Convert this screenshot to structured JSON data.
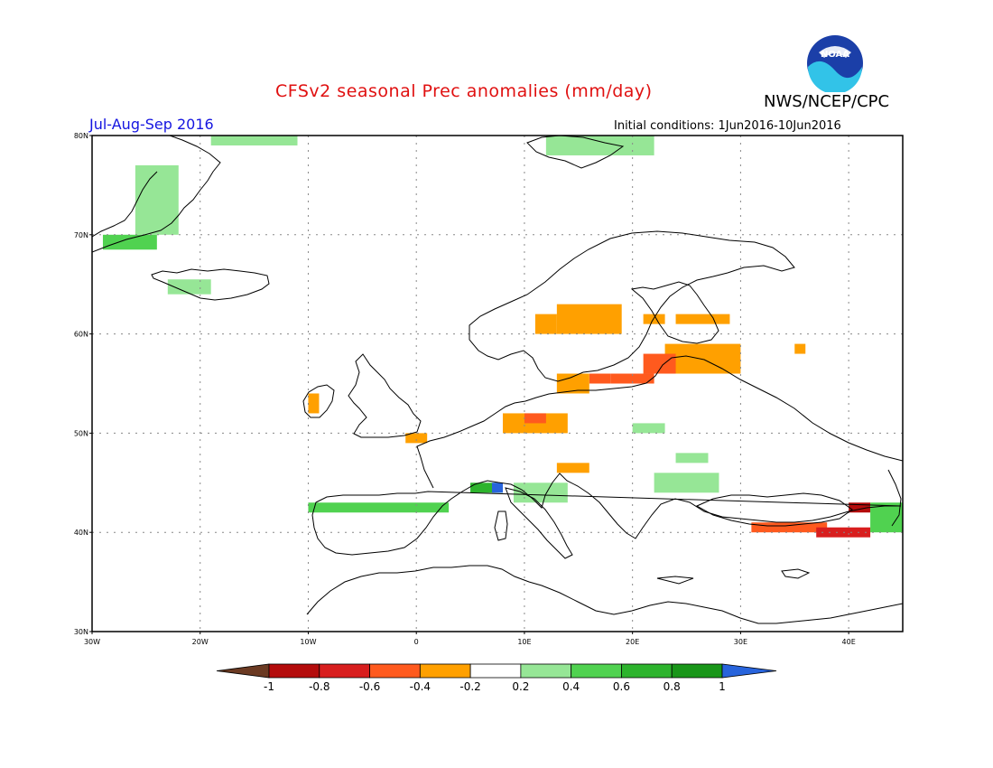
{
  "header": {
    "title": "CFSv2 seasonal Prec anomalies (mm/day)",
    "org": "NWS/NCEP/CPC",
    "logo_text": "NOAA",
    "season": "Jul-Aug-Sep 2016",
    "initial_conditions": "Initial conditions: 1Jun2016-10Jun2016"
  },
  "axes": {
    "lon_labels": [
      "30W",
      "20W",
      "10W",
      "0",
      "10E",
      "20E",
      "30E",
      "40E"
    ],
    "lat_labels": [
      "30N",
      "40N",
      "50N",
      "60N",
      "70N",
      "80N"
    ]
  },
  "colorbar": {
    "labels": [
      "-1",
      "-0.8",
      "-0.6",
      "-0.4",
      "-0.2",
      "0.2",
      "0.4",
      "0.6",
      "0.8",
      "1"
    ],
    "colors": [
      "#6b3a22",
      "#b40c0c",
      "#d81e1e",
      "#ff5a1e",
      "#ffa000",
      "#ffffff",
      "#96e696",
      "#50d250",
      "#2db42d",
      "#199619",
      "#2864dc"
    ]
  },
  "chart_data": {
    "type": "heatmap",
    "title": "CFSv2 seasonal Prec anomalies (mm/day)",
    "subtitle": "Jul-Aug-Sep 2016",
    "variable": "Prec anomalies (mm/day)",
    "lon_range": [
      -30,
      45
    ],
    "lat_range": [
      30,
      80
    ],
    "grid": "dotted",
    "colorbar_bins": [
      {
        "range": "< -1",
        "color": "#6b3a22"
      },
      {
        "range": "-1 to -0.8",
        "color": "#b40c0c"
      },
      {
        "range": "-0.8 to -0.6",
        "color": "#d81e1e"
      },
      {
        "range": "-0.6 to -0.4",
        "color": "#ff5a1e"
      },
      {
        "range": "-0.4 to -0.2",
        "color": "#ffa000"
      },
      {
        "range": "-0.2 to 0.2",
        "color": "#ffffff"
      },
      {
        "range": "0.2 to 0.4",
        "color": "#96e696"
      },
      {
        "range": "0.4 to 0.6",
        "color": "#50d250"
      },
      {
        "range": "0.6 to 0.8",
        "color": "#2db42d"
      },
      {
        "range": "0.8 to 1",
        "color": "#199619"
      },
      {
        "range": "> 1",
        "color": "#2864dc"
      }
    ],
    "regions": [
      {
        "lon": [
          -29,
          -24
        ],
        "lat": [
          68.5,
          70
        ],
        "value": 0.4
      },
      {
        "lon": [
          -26,
          -22
        ],
        "lat": [
          70,
          77
        ],
        "value": 0.3
      },
      {
        "lon": [
          -23,
          -19
        ],
        "lat": [
          64,
          65.5
        ],
        "value": 0.3
      },
      {
        "lon": [
          -19,
          -11
        ],
        "lat": [
          79,
          80
        ],
        "value": 0.3
      },
      {
        "lon": [
          12,
          22
        ],
        "lat": [
          78,
          80
        ],
        "value": 0.3
      },
      {
        "lon": [
          13,
          19
        ],
        "lat": [
          60,
          63
        ],
        "value": -0.3
      },
      {
        "lon": [
          11,
          13
        ],
        "lat": [
          60,
          62
        ],
        "value": -0.3
      },
      {
        "lon": [
          21,
          23
        ],
        "lat": [
          61,
          62
        ],
        "value": -0.3
      },
      {
        "lon": [
          24,
          29
        ],
        "lat": [
          61,
          62
        ],
        "value": -0.3
      },
      {
        "lon": [
          23,
          30
        ],
        "lat": [
          56,
          59
        ],
        "value": -0.3
      },
      {
        "lon": [
          21,
          24
        ],
        "lat": [
          56,
          58
        ],
        "value": -0.5
      },
      {
        "lon": [
          18,
          22
        ],
        "lat": [
          55,
          56
        ],
        "value": -0.5
      },
      {
        "lon": [
          16,
          18
        ],
        "lat": [
          55,
          56
        ],
        "value": -0.5
      },
      {
        "lon": [
          13,
          16
        ],
        "lat": [
          54,
          56
        ],
        "value": -0.3
      },
      {
        "lon": [
          8,
          14
        ],
        "lat": [
          50,
          52
        ],
        "value": -0.3
      },
      {
        "lon": [
          10,
          12
        ],
        "lat": [
          51,
          52
        ],
        "value": -0.5
      },
      {
        "lon": [
          -1,
          1
        ],
        "lat": [
          49,
          50
        ],
        "value": -0.3
      },
      {
        "lon": [
          -10,
          -9
        ],
        "lat": [
          52,
          54
        ],
        "value": -0.3
      },
      {
        "lon": [
          13,
          16
        ],
        "lat": [
          46,
          47
        ],
        "value": -0.3
      },
      {
        "lon": [
          5,
          8
        ],
        "lat": [
          44,
          45
        ],
        "value": 0.6
      },
      {
        "lon": [
          7,
          8
        ],
        "lat": [
          44,
          45
        ],
        "value": 1.1
      },
      {
        "lon": [
          -10,
          3
        ],
        "lat": [
          42,
          43
        ],
        "value": 0.4
      },
      {
        "lon": [
          9,
          14
        ],
        "lat": [
          43,
          45
        ],
        "value": 0.3
      },
      {
        "lon": [
          22,
          28
        ],
        "lat": [
          44,
          46
        ],
        "value": 0.3
      },
      {
        "lon": [
          31,
          38
        ],
        "lat": [
          40,
          41
        ],
        "value": -0.5
      },
      {
        "lon": [
          37,
          42
        ],
        "lat": [
          39.5,
          40.5
        ],
        "value": -0.7
      },
      {
        "lon": [
          40,
          42
        ],
        "lat": [
          42,
          43
        ],
        "value": -0.9
      },
      {
        "lon": [
          42,
          45
        ],
        "lat": [
          40,
          43
        ],
        "value": 0.4
      },
      {
        "lon": [
          35,
          36
        ],
        "lat": [
          58,
          59
        ],
        "value": -0.3
      },
      {
        "lon": [
          20,
          23
        ],
        "lat": [
          50,
          51
        ],
        "value": 0.3
      },
      {
        "lon": [
          24,
          27
        ],
        "lat": [
          47,
          48
        ],
        "value": 0.3
      }
    ]
  }
}
